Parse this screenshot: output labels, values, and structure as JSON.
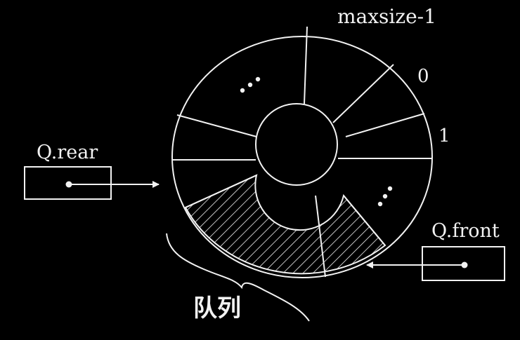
{
  "labels": {
    "maxsize_index": "maxsize-1",
    "index_zero": "0",
    "index_one": "1",
    "rear_pointer": "Q.rear",
    "front_pointer": "Q.front",
    "queue_caption": "队列"
  },
  "colors": {
    "background": "#000000",
    "foreground": "#f2f2f2"
  }
}
